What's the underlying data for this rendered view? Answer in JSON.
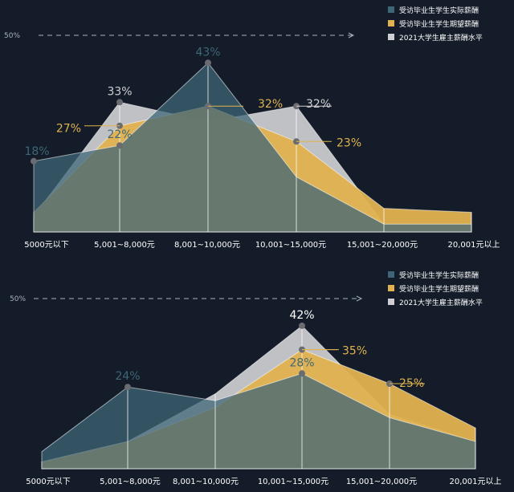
{
  "chart_data": [
    {
      "type": "area",
      "categories": [
        "5000元以下",
        "5,001~8,000元",
        "8,001~10,000元",
        "10,001~15,000元",
        "15,001~20,000元",
        "20,001元以上"
      ],
      "ref_label": "50%",
      "ylim": [
        0,
        50
      ],
      "series": [
        {
          "name": "受访毕业生学生实际薪酬",
          "values": [
            18,
            22,
            43,
            14,
            2,
            2
          ],
          "labels": [
            "18%",
            "22%",
            "43%",
            "",
            "",
            ""
          ]
        },
        {
          "name": "受访毕业生学生期望薪酬",
          "values": [
            5,
            27,
            32,
            23,
            6,
            5
          ],
          "labels": [
            "",
            "27%",
            "32%",
            "23%",
            "",
            ""
          ]
        },
        {
          "name": "2021大学生雇主薪酬水平",
          "values": [
            4,
            33,
            28,
            32,
            2,
            2
          ],
          "labels": [
            "",
            "33%",
            "",
            "32%",
            "",
            ""
          ]
        }
      ]
    },
    {
      "type": "area",
      "categories": [
        "5000元以下",
        "5,001~8,000元",
        "8,001~10,000元",
        "10,001~15,000元",
        "15,001~20,000元",
        "20,001元以上"
      ],
      "ref_label": "50%",
      "ylim": [
        0,
        50
      ],
      "series": [
        {
          "name": "受访毕业生学生实际薪酬",
          "values": [
            5,
            24,
            20,
            28,
            15,
            8
          ],
          "labels": [
            "",
            "24%",
            "",
            "28%",
            "",
            ""
          ]
        },
        {
          "name": "受访毕业生学生期望薪酬",
          "values": [
            2,
            8,
            18,
            35,
            25,
            12
          ],
          "labels": [
            "",
            "",
            "",
            "35%",
            "25%",
            ""
          ]
        },
        {
          "name": "2021大学生雇主薪酬水平",
          "values": [
            2,
            8,
            22,
            42,
            16,
            8
          ],
          "labels": [
            "",
            "",
            "",
            "42%",
            "",
            ""
          ]
        }
      ]
    }
  ],
  "colors": {
    "background": "#131c28",
    "actual": "#3f6677",
    "expected": "#e0b24f",
    "employer": "#cfcfd3",
    "axis_text": "#ffffff",
    "ref_line": "#a9b1bb"
  }
}
